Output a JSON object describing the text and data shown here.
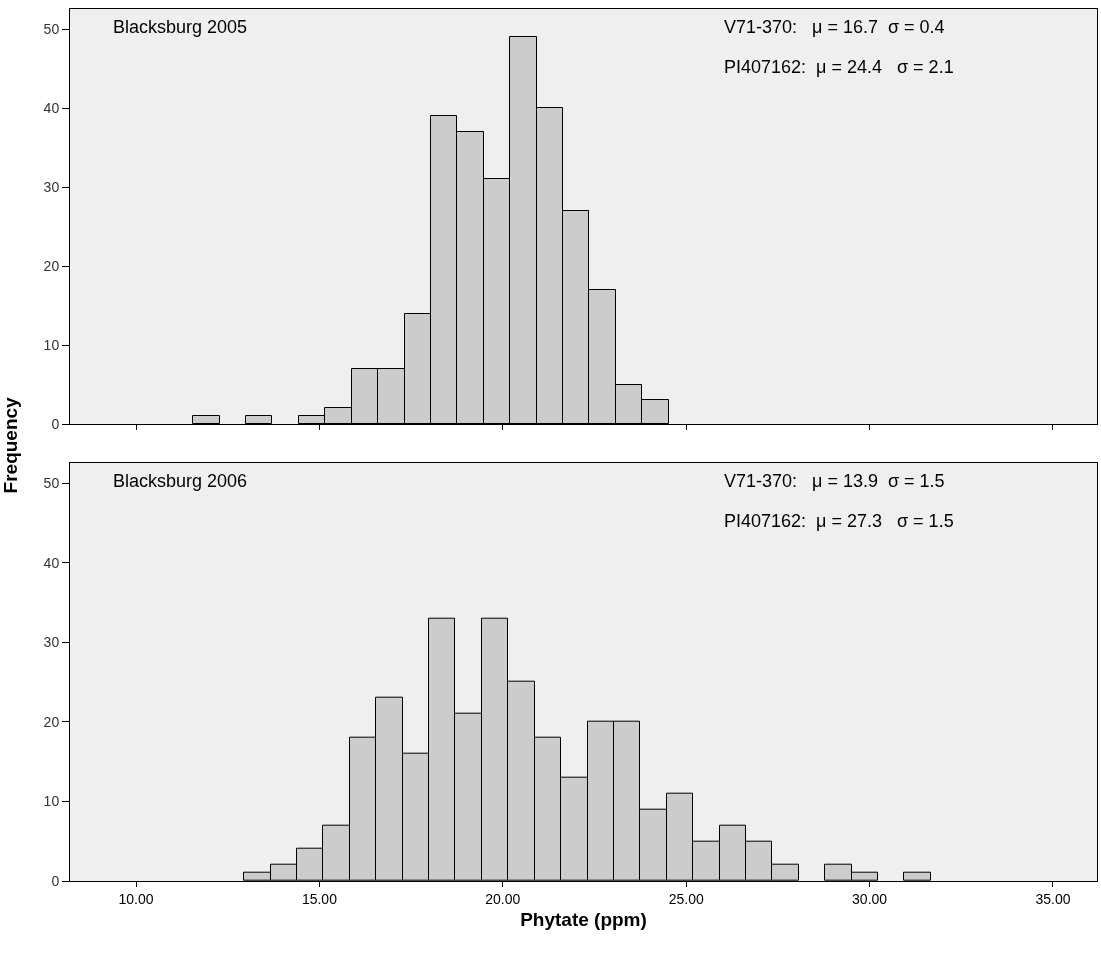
{
  "chart_data": [
    {
      "type": "histogram",
      "title": "Blacksburg 2005",
      "ylabel": "Frequency",
      "annotations": [
        "V71-370:   μ = 16.7  σ = 0.4",
        "PI407162:  μ = 24.4   σ = 2.1"
      ],
      "bins": [
        11.56,
        12.28,
        13.0,
        13.72,
        14.44,
        15.16,
        15.88,
        16.6,
        17.32,
        18.04,
        18.76,
        19.48,
        20.2,
        20.92,
        21.64,
        22.36,
        23.08,
        23.8,
        24.52
      ],
      "values": [
        1,
        0,
        1,
        0,
        1,
        2,
        7,
        7,
        14,
        39,
        37,
        31,
        49,
        40,
        27,
        17,
        5,
        3
      ],
      "color": "#cccccc",
      "xlim": [
        8.2,
        36.2
      ],
      "ylim": [
        0,
        52.6
      ],
      "xticks": [
        {
          "value": 10,
          "label": null
        },
        {
          "value": 15,
          "label": null
        },
        {
          "value": 20,
          "label": null
        },
        {
          "value": 25,
          "label": null
        },
        {
          "value": 30,
          "label": null
        },
        {
          "value": 35,
          "label": null
        }
      ],
      "yticks": [
        0,
        10,
        20,
        30,
        40,
        50
      ],
      "tick_labels": "y",
      "grid": false,
      "legend": false
    },
    {
      "type": "histogram",
      "title": "Blacksburg 2006",
      "xlabel": "Phytate (ppm)",
      "annotations": [
        "V71-370:   μ = 13.9  σ = 1.5",
        "PI407162:  μ = 27.3   σ = 1.5"
      ],
      "bins": [
        12.95,
        13.67,
        14.39,
        15.11,
        15.83,
        16.55,
        17.27,
        17.99,
        18.71,
        19.43,
        20.15,
        20.87,
        21.59,
        22.31,
        23.03,
        23.75,
        24.47,
        25.19,
        25.91,
        26.63,
        27.35,
        28.07,
        28.79,
        29.51,
        30.23,
        30.95,
        31.67
      ],
      "values": [
        1,
        2,
        4,
        7,
        18,
        23,
        16,
        33,
        21,
        33,
        25,
        18,
        13,
        20,
        20,
        9,
        11,
        5,
        7,
        5,
        2,
        0,
        2,
        1,
        0,
        1
      ],
      "color": "#cccccc",
      "xlim": [
        8.2,
        36.2
      ],
      "ylim": [
        0,
        52.6
      ],
      "xticks": [
        {
          "value": 10,
          "label": "10.00"
        },
        {
          "value": 15,
          "label": "15.00"
        },
        {
          "value": 20,
          "label": "20.00"
        },
        {
          "value": 25,
          "label": "25.00"
        },
        {
          "value": 30,
          "label": "30.00"
        },
        {
          "value": 35,
          "label": "35.00"
        }
      ],
      "yticks": [
        0,
        10,
        20,
        30,
        40,
        50
      ],
      "grid": false,
      "legend": false
    }
  ]
}
